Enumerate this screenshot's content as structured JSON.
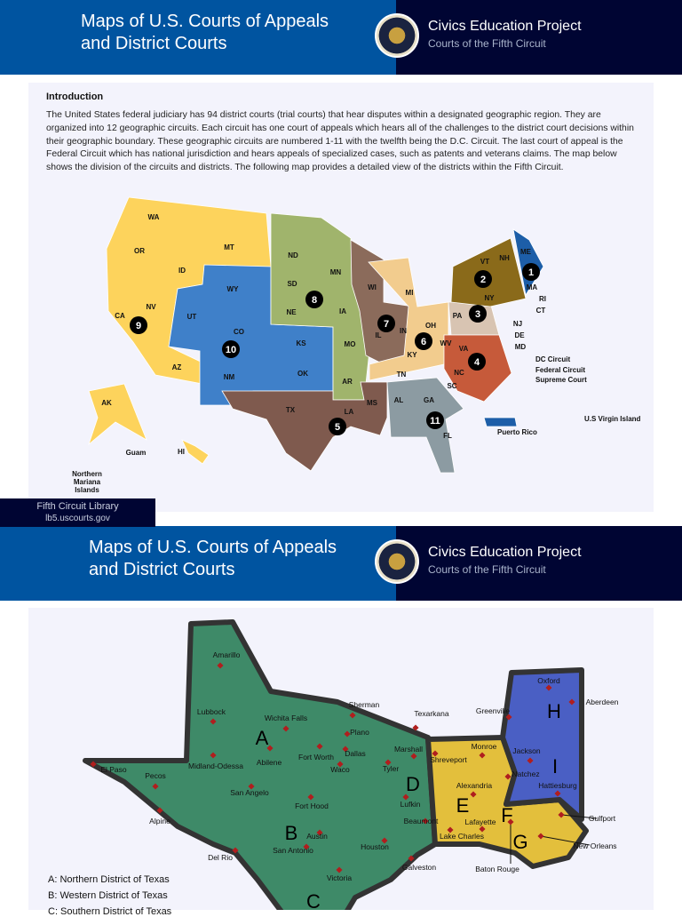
{
  "header": {
    "title_line1": "Maps of U.S. Courts of Appeals",
    "title_line2": "and District Courts",
    "org": "Civics Education Project",
    "subtitle": "Courts of the Fifth Circuit"
  },
  "intro": {
    "heading": "Introduction",
    "body": "The United States federal judiciary has 94 district courts (trial courts) that hear disputes within a designated geographic region. They are organized into 12 geographic circuits. Each circuit has one court of appeals which hears all of the challenges to the district court decisions within their geographic boundary. These geographic circuits are numbered 1-11 with the twelfth being the D.C. Circuit. The last court of appeal is the Federal Circuit which has national jurisdiction and hears appeals of specialized cases, such as patents and veterans claims. The map below shows the division of the circuits and districts.  The following map provides a detailed view of the districts within the Fifth Circuit."
  },
  "footer": {
    "library": "Fifth Circuit Library",
    "url": "lb5.uscourts.gov"
  },
  "us_map": {
    "colors": {
      "c1": "#1d5ea8",
      "c2": "#8a6a1a",
      "c3": "#d8c4b2",
      "c4": "#c65a3a",
      "c5": "#7f5a4e",
      "c6": "#f2cc8e",
      "c7": "#8b6b5b",
      "c8": "#a0b46c",
      "c9": "#fdd35c",
      "c10": "#3f80c9",
      "c11": "#8c9ba2"
    },
    "state_labels": [
      "WA",
      "OR",
      "ID",
      "MT",
      "CA",
      "NV",
      "AZ",
      "WY",
      "UT",
      "CO",
      "NM",
      "ND",
      "SD",
      "NE",
      "KS",
      "OK",
      "TX",
      "MN",
      "IA",
      "MO",
      "AR",
      "LA",
      "WI",
      "IL",
      "MI",
      "IN",
      "OH",
      "KY",
      "TN",
      "MS",
      "AL",
      "GA",
      "FL",
      "WV",
      "VA",
      "NC",
      "SC",
      "PA",
      "NY",
      "VT",
      "NH",
      "ME",
      "MA",
      "RI",
      "CT",
      "NJ",
      "DE",
      "MD",
      "AK",
      "HI",
      "Guam",
      "Northern",
      "Mariana",
      "Islands",
      "Puerto Rico",
      "U.S Virgin Island",
      "DC Circuit",
      "Federal Circuit",
      "Supreme Court"
    ],
    "circuits": [
      "1",
      "2",
      "3",
      "4",
      "5",
      "6",
      "7",
      "8",
      "9",
      "10",
      "11"
    ]
  },
  "fifth_map": {
    "colors": {
      "texas": "#3e8a68",
      "louisiana": "#e3bf3c",
      "mississippi": "#4a5fc4",
      "marker": "#b01e1e"
    },
    "districts": [
      "A",
      "B",
      "C",
      "D",
      "E",
      "F",
      "G",
      "H",
      "I"
    ],
    "cities": [
      "Amarillo",
      "Lubbock",
      "Wichita Falls",
      "Sherman",
      "Plano",
      "Dallas",
      "Fort Worth",
      "Abilene",
      "Midland-Odessa",
      "El Paso",
      "Pecos",
      "Alpine",
      "San Angelo",
      "Waco",
      "Fort Hood",
      "Austin",
      "San Antonio",
      "Houston",
      "Galveston",
      "Del Rio",
      "Victoria",
      "Marshall",
      "Tyler",
      "Texarkana",
      "Lufkin",
      "Beaumont",
      "Shreveport",
      "Monroe",
      "Alexandria",
      "Lafayette",
      "Lake Charles",
      "Baton Rouge",
      "Greenville",
      "Oxford",
      "Aberdeen",
      "Jackson",
      "Natchez",
      "Hattiesburg",
      "Gulfport",
      "New Orleans"
    ],
    "legend": [
      "A: Northern District of Texas",
      "B: Western District of Texas",
      "C: Southern District of Texas"
    ]
  }
}
